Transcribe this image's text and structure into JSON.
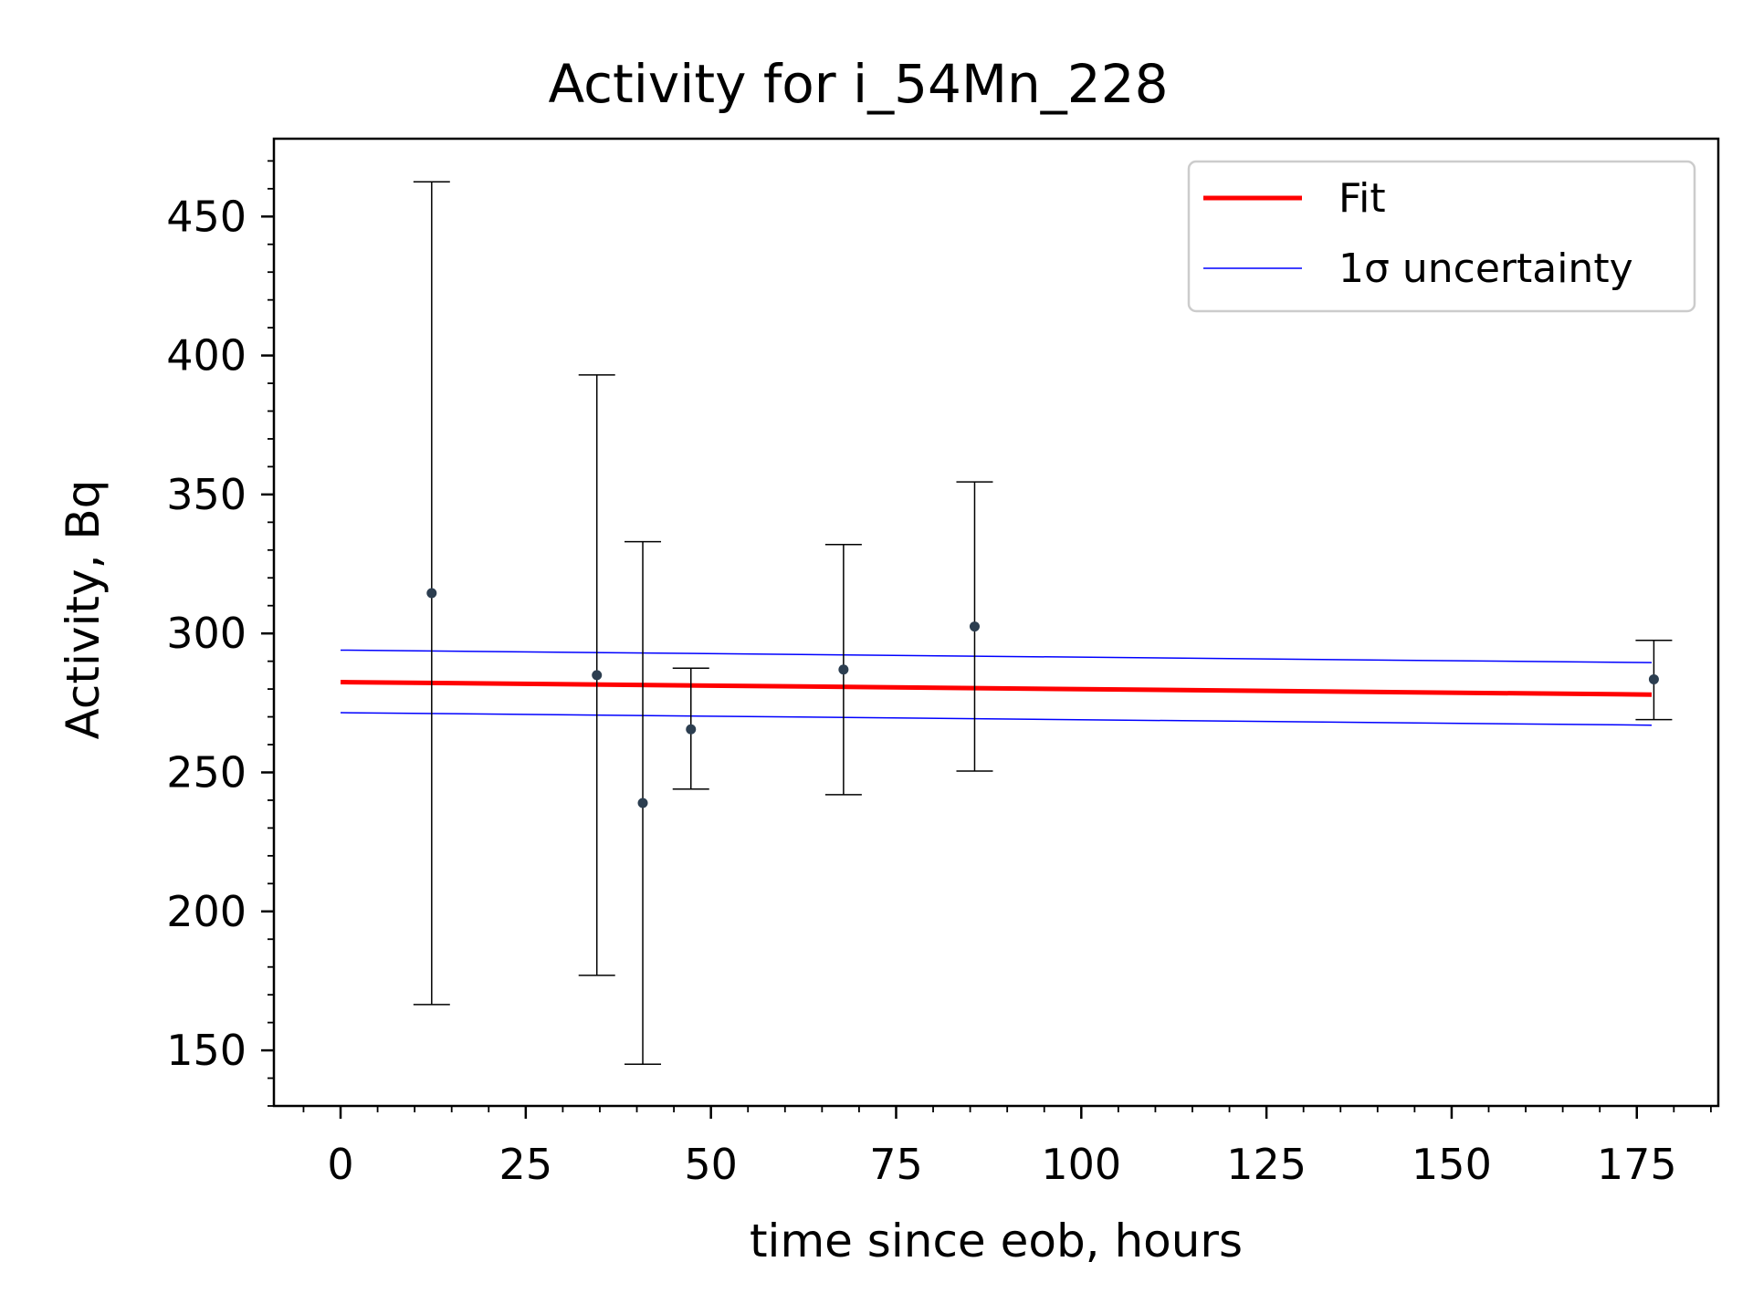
{
  "chart_data": {
    "type": "scatter",
    "title": "Activity for i_54Mn_228",
    "xlabel": "time since eob, hours",
    "ylabel": "Activity, Bq",
    "xlim": [
      -9,
      186
    ],
    "ylim": [
      130,
      478
    ],
    "xticks": [
      0,
      25,
      50,
      75,
      100,
      125,
      150,
      175
    ],
    "yticks": [
      150,
      200,
      250,
      300,
      350,
      400,
      450
    ],
    "grid": false,
    "legend_position": "top-right",
    "points": [
      {
        "x": 12.3,
        "y": 314.5,
        "ylow": 166.5,
        "yhigh": 462.5
      },
      {
        "x": 34.6,
        "y": 285.0,
        "ylow": 177.0,
        "yhigh": 393.0
      },
      {
        "x": 40.8,
        "y": 239.0,
        "ylow": 145.0,
        "yhigh": 333.0
      },
      {
        "x": 47.3,
        "y": 265.5,
        "ylow": 244.0,
        "yhigh": 287.5
      },
      {
        "x": 67.9,
        "y": 287.0,
        "ylow": 242.0,
        "yhigh": 332.0
      },
      {
        "x": 85.6,
        "y": 302.5,
        "ylow": 250.5,
        "yhigh": 354.5
      },
      {
        "x": 177.3,
        "y": 283.5,
        "ylow": 269.0,
        "yhigh": 297.5
      }
    ],
    "fit": {
      "name": "Fit",
      "color": "#ff0000",
      "x": [
        0,
        177
      ],
      "y": [
        282.5,
        278.0
      ]
    },
    "uncertainty": {
      "name": "1σ uncertainty",
      "color": "#0000ff",
      "upper": {
        "x": [
          0,
          177
        ],
        "y": [
          294.0,
          289.5
        ]
      },
      "lower": {
        "x": [
          0,
          177
        ],
        "y": [
          271.5,
          267.0
        ]
      }
    },
    "point_color": "#2c3e50",
    "errorbar_color": "#000000"
  }
}
